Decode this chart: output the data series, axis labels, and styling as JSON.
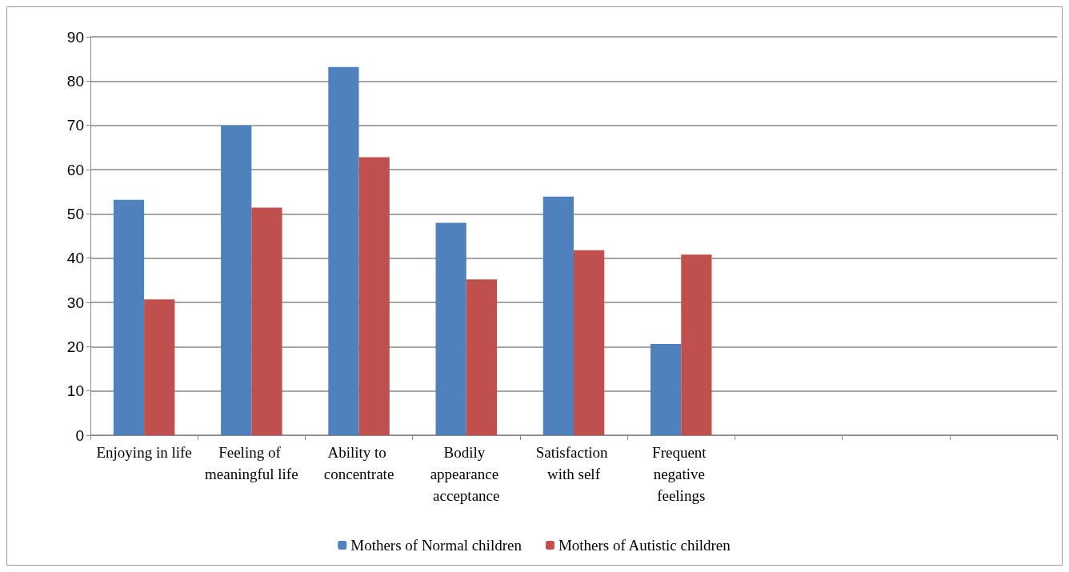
{
  "chart_data": {
    "type": "bar",
    "categories": [
      "Enjoying in life",
      "Feeling of meaningful life",
      "Ability to concentrate",
      "Bodily appearance acceptance",
      "Satisfaction with self",
      "Frequent negative feelings",
      null,
      null,
      null
    ],
    "series": [
      {
        "name": "Mothers of Normal children",
        "color": "#4f81bd",
        "values": [
          53.2,
          70,
          83.2,
          48,
          53.9,
          20.6,
          null,
          null,
          null
        ]
      },
      {
        "name": "Mothers of Autistic children",
        "color": "#c0504d",
        "values": [
          30.7,
          51.4,
          62.8,
          35.2,
          41.8,
          40.8,
          null,
          null,
          null
        ]
      }
    ],
    "ylim": [
      0,
      90
    ],
    "yticks": [
      0,
      10,
      20,
      30,
      40,
      50,
      60,
      70,
      80,
      90
    ],
    "grid": "y",
    "legend": "bottom"
  }
}
